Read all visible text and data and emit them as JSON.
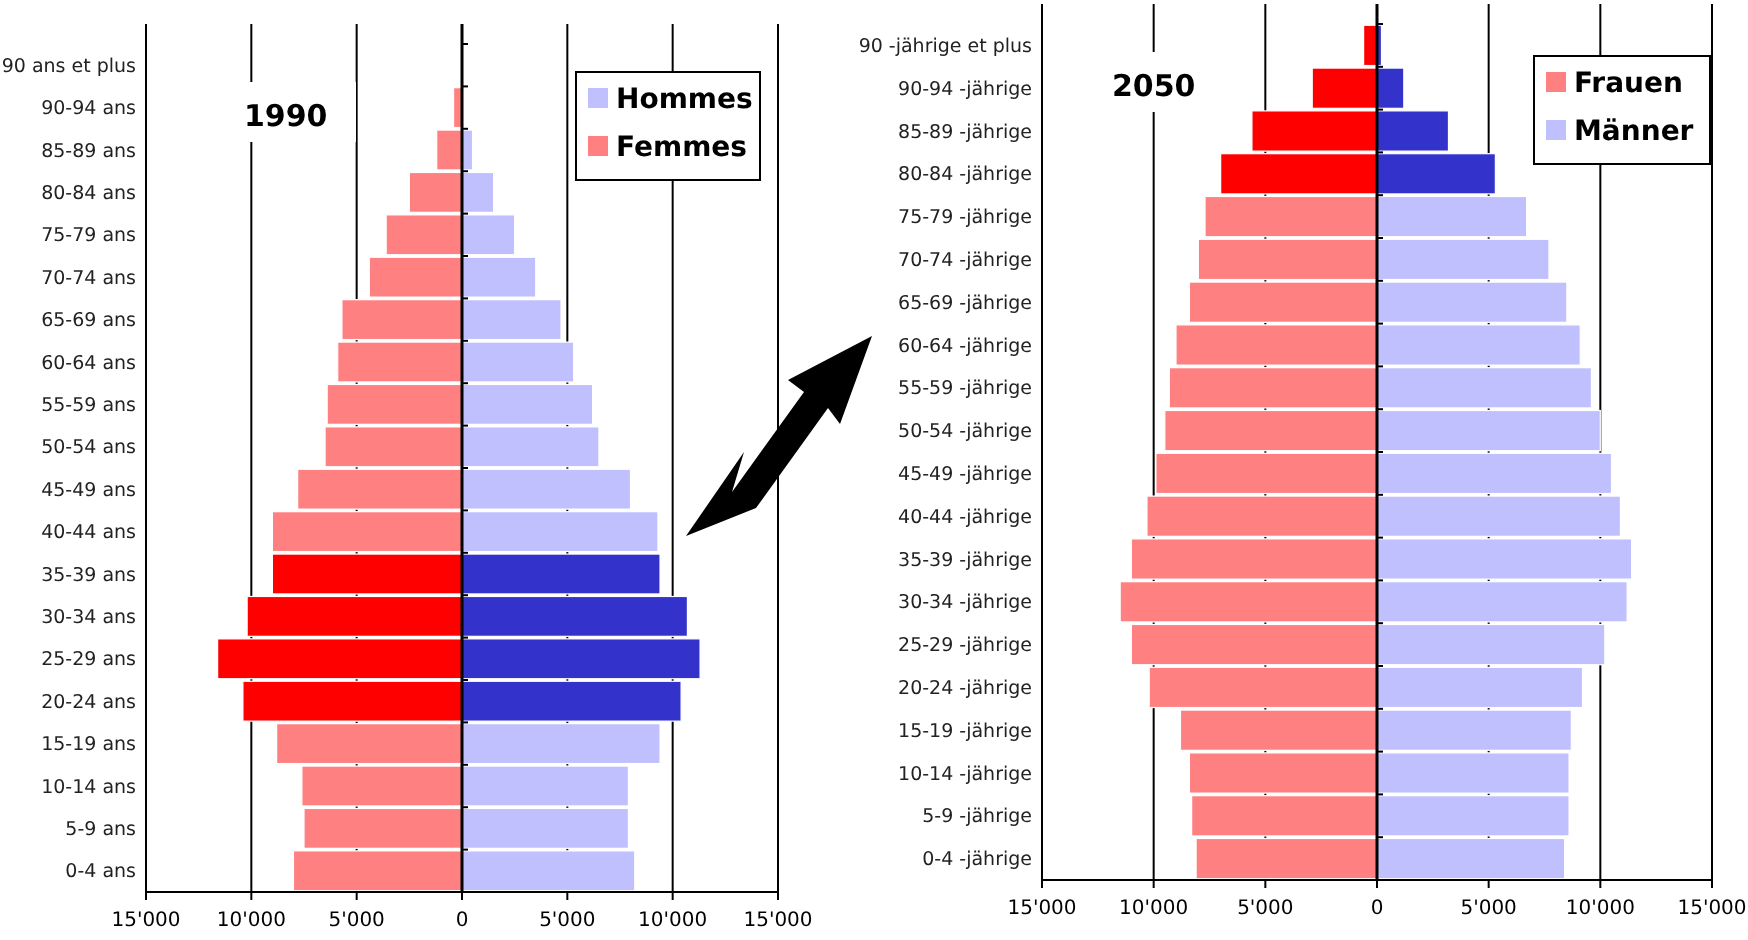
{
  "chart_data": [
    {
      "type": "bar",
      "orientation": "horizontal",
      "title": "1990",
      "stacked": true,
      "categories": [
        "90 ans et plus",
        "90-94 ans",
        "85-89 ans",
        "80-84 ans",
        "75-79 ans",
        "70-74 ans",
        "65-69 ans",
        "60-64 ans",
        "55-59 ans",
        "50-54 ans",
        "45-49 ans",
        "40-44 ans",
        "35-39 ans",
        "30-34 ans",
        "25-29 ans",
        "20-24 ans",
        "15-19 ans",
        "10-14 ans",
        "5-9 ans",
        "0-4 ans"
      ],
      "xlim": [
        -15000,
        15000
      ],
      "xticks": [
        {
          "value": -15000,
          "label": "15'000"
        },
        {
          "value": -10000,
          "label": "10'000"
        },
        {
          "value": -5000,
          "label": "5'000"
        },
        0,
        {
          "value": 5000,
          "label": "5'000"
        },
        {
          "value": 10000,
          "label": "10'000"
        },
        {
          "value": 15000,
          "label": "15'000"
        }
      ],
      "grid": "x",
      "legend": "top right",
      "series": [
        {
          "name": "Hommes",
          "color": "#c0c0ff",
          "colors": [
            "#c0c0ff",
            "#c0c0ff",
            "#c0c0ff",
            "#c0c0ff",
            "#c0c0ff",
            "#c0c0ff",
            "#c0c0ff",
            "#c0c0ff",
            "#c0c0ff",
            "#c0c0ff",
            "#c0c0ff",
            "#c0c0ff",
            "#3333cc",
            "#3333cc",
            "#3333cc",
            "#3333cc",
            "#c0c0ff",
            "#c0c0ff",
            "#c0c0ff",
            "#c0c0ff"
          ],
          "values": [
            0,
            0,
            500,
            1500,
            2500,
            3500,
            4700,
            5300,
            6200,
            6500,
            8000,
            9300,
            9400,
            10700,
            11300,
            10400,
            9400,
            7900,
            7900,
            8200
          ]
        },
        {
          "name": "Femmes",
          "color": "#ff8080",
          "colors": [
            "#ff8080",
            "#ff8080",
            "#ff8080",
            "#ff8080",
            "#ff8080",
            "#ff8080",
            "#ff8080",
            "#ff8080",
            "#ff8080",
            "#ff8080",
            "#ff8080",
            "#ff8080",
            "#ff0000",
            "#ff0000",
            "#ff0000",
            "#ff0000",
            "#ff8080",
            "#ff8080",
            "#ff8080",
            "#ff8080"
          ],
          "values": [
            0,
            -400,
            -1200,
            -2500,
            -3600,
            -4400,
            -5700,
            -5900,
            -6400,
            -6500,
            -7800,
            -9000,
            -9000,
            -10200,
            -11600,
            -10400,
            -8800,
            -7600,
            -7500,
            -8000
          ]
        }
      ]
    },
    {
      "type": "bar",
      "orientation": "horizontal",
      "title": "2050",
      "stacked": true,
      "categories": [
        "90 -jährige et plus",
        "90-94 -jährige",
        "85-89 -jährige",
        "80-84 -jährige",
        "75-79 -jährige",
        "70-74 -jährige",
        "65-69 -jährige",
        "60-64 -jährige",
        "55-59 -jährige",
        "50-54 -jährige",
        "45-49 -jährige",
        "40-44 -jährige",
        "35-39 -jährige",
        "30-34 -jährige",
        "25-29 -jährige",
        "20-24 -jährige",
        "15-19 -jährige",
        "10-14 -jährige",
        "5-9 -jährige",
        "0-4 -jährige"
      ],
      "xlim": [
        -15000,
        15000
      ],
      "xticks": [
        {
          "value": -15000,
          "label": "15'000"
        },
        {
          "value": -10000,
          "label": "10'000"
        },
        {
          "value": -5000,
          "label": "5'000"
        },
        0,
        {
          "value": 5000,
          "label": "5'000"
        },
        {
          "value": 10000,
          "label": "10'000"
        },
        {
          "value": 15000,
          "label": "15'000"
        }
      ],
      "grid": "x",
      "legend": "top right",
      "series": [
        {
          "name": "Frauen",
          "color": "#ff8080",
          "colors": [
            "#ff0000",
            "#ff0000",
            "#ff0000",
            "#ff0000",
            "#ff8080",
            "#ff8080",
            "#ff8080",
            "#ff8080",
            "#ff8080",
            "#ff8080",
            "#ff8080",
            "#ff8080",
            "#ff8080",
            "#ff8080",
            "#ff8080",
            "#ff8080",
            "#ff8080",
            "#ff8080",
            "#ff8080",
            "#ff8080"
          ],
          "values": [
            -600,
            -2900,
            -5600,
            -7000,
            -7700,
            -8000,
            -8400,
            -9000,
            -9300,
            -9500,
            -9900,
            -10300,
            -11000,
            -11500,
            -11000,
            -10200,
            -8800,
            -8400,
            -8300,
            -8100
          ]
        },
        {
          "name": "Männer",
          "color": "#c0c0ff",
          "colors": [
            "#3333cc",
            "#3333cc",
            "#3333cc",
            "#3333cc",
            "#c0c0ff",
            "#c0c0ff",
            "#c0c0ff",
            "#c0c0ff",
            "#c0c0ff",
            "#c0c0ff",
            "#c0c0ff",
            "#c0c0ff",
            "#c0c0ff",
            "#c0c0ff",
            "#c0c0ff",
            "#c0c0ff",
            "#c0c0ff",
            "#c0c0ff",
            "#c0c0ff",
            "#c0c0ff"
          ],
          "values": [
            200,
            1200,
            3200,
            5300,
            6700,
            7700,
            8500,
            9100,
            9600,
            10000,
            10500,
            10900,
            11400,
            11200,
            10200,
            9200,
            8700,
            8600,
            8600,
            8400
          ]
        }
      ]
    }
  ]
}
